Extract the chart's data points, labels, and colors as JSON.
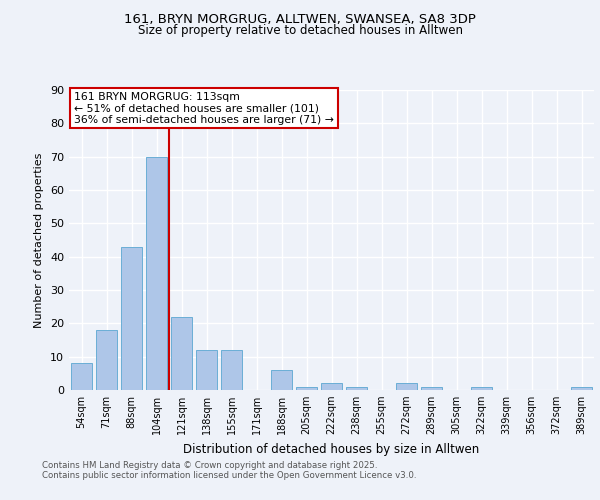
{
  "title1": "161, BRYN MORGRUG, ALLTWEN, SWANSEA, SA8 3DP",
  "title2": "Size of property relative to detached houses in Alltwen",
  "xlabel": "Distribution of detached houses by size in Alltwen",
  "ylabel": "Number of detached properties",
  "categories": [
    "54sqm",
    "71sqm",
    "88sqm",
    "104sqm",
    "121sqm",
    "138sqm",
    "155sqm",
    "171sqm",
    "188sqm",
    "205sqm",
    "222sqm",
    "238sqm",
    "255sqm",
    "272sqm",
    "289sqm",
    "305sqm",
    "322sqm",
    "339sqm",
    "356sqm",
    "372sqm",
    "389sqm"
  ],
  "values": [
    8,
    18,
    43,
    70,
    22,
    12,
    12,
    0,
    6,
    1,
    2,
    1,
    0,
    2,
    1,
    0,
    1,
    0,
    0,
    0,
    1
  ],
  "bar_color": "#aec6e8",
  "bar_edge_color": "#6aaed6",
  "red_line_x": 3.5,
  "annotation_line1": "161 BRYN MORGRUG: 113sqm",
  "annotation_line2": "← 51% of detached houses are smaller (101)",
  "annotation_line3": "36% of semi-detached houses are larger (71) →",
  "red_line_color": "#cc0000",
  "annotation_box_color": "#ffffff",
  "annotation_box_edge": "#cc0000",
  "ylim": [
    0,
    90
  ],
  "yticks": [
    0,
    10,
    20,
    30,
    40,
    50,
    60,
    70,
    80,
    90
  ],
  "footer1": "Contains HM Land Registry data © Crown copyright and database right 2025.",
  "footer2": "Contains public sector information licensed under the Open Government Licence v3.0.",
  "bg_color": "#eef2f9",
  "grid_color": "#ffffff"
}
